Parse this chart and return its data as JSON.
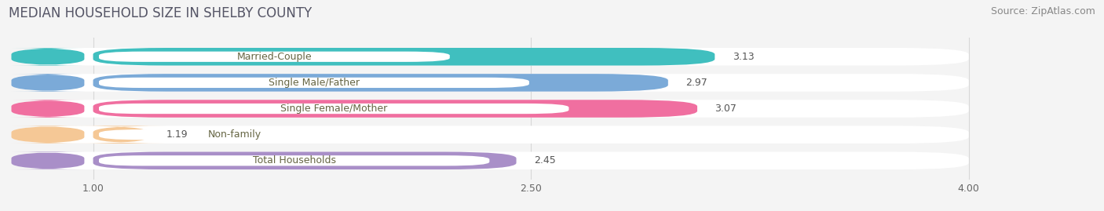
{
  "title": "MEDIAN HOUSEHOLD SIZE IN SHELBY COUNTY",
  "source": "Source: ZipAtlas.com",
  "categories": [
    "Married-Couple",
    "Single Male/Father",
    "Single Female/Mother",
    "Non-family",
    "Total Households"
  ],
  "values": [
    3.13,
    2.97,
    3.07,
    1.19,
    2.45
  ],
  "bar_colors": [
    "#40bfbf",
    "#7baad8",
    "#f06fa0",
    "#f5c896",
    "#a98fc8"
  ],
  "xlim_min": 0.72,
  "xlim_max": 4.0,
  "xdata_min": 1.0,
  "xdata_max": 4.0,
  "xticks": [
    1.0,
    2.5,
    4.0
  ],
  "xtick_labels": [
    "1.00",
    "2.50",
    "4.00"
  ],
  "background_color": "#f4f4f4",
  "bar_track_color": "#e8e8e8",
  "label_bg_color": "#ffffff",
  "title_color": "#555566",
  "source_color": "#888888",
  "label_text_color": "#666644",
  "value_text_color": "#555555",
  "title_fontsize": 12,
  "source_fontsize": 9,
  "label_fontsize": 9,
  "value_fontsize": 9
}
